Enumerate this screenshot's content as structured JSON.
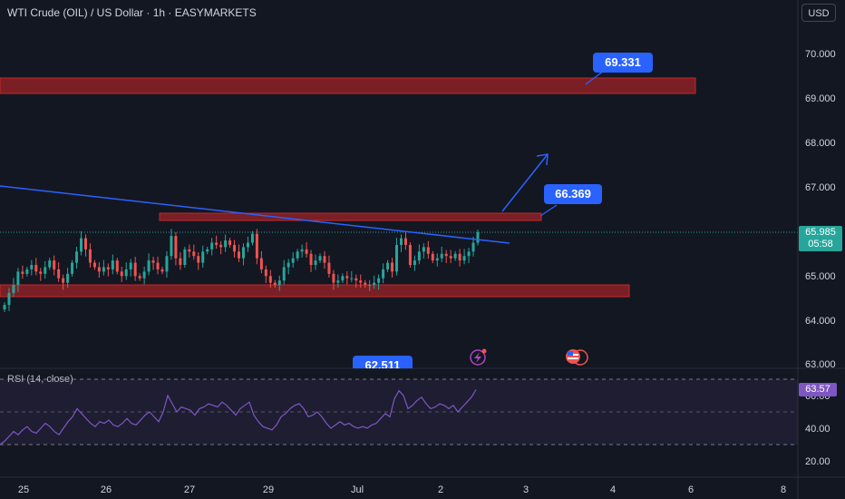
{
  "header": {
    "title": "WTI Crude (OIL) / US Dollar · 1h · EASYMARKETS",
    "currency_button": "USD"
  },
  "price_axis": {
    "labels": [
      "70.000",
      "69.000",
      "68.000",
      "67.000",
      "65.000",
      "64.000",
      "63.000"
    ]
  },
  "last_price": {
    "value": "65.985",
    "countdown": "05:58"
  },
  "time_axis": {
    "labels": [
      "25",
      "26",
      "27",
      "29",
      "Jul",
      "2",
      "3",
      "4",
      "6",
      "8"
    ]
  },
  "annotations": {
    "target_high": "69.331",
    "target_mid": "66.369",
    "support_label": "62.511"
  },
  "rsi": {
    "label": "RSI (14, close)",
    "value": "63.57",
    "axis_labels": [
      "60.00",
      "40.00",
      "20.00"
    ]
  },
  "colors": {
    "background": "#131722",
    "bull": "#26a69a",
    "bear": "#ef5350",
    "zone": "#7a1f25",
    "trendline": "#2962ff",
    "rsi_line": "#7e57c2"
  },
  "chart_data": {
    "type": "candlestick",
    "title": "WTI Crude (OIL) / US Dollar · 1h · EASYMARKETS",
    "ylim": [
      62.9,
      70.4
    ],
    "x_tick_labels": [
      "25",
      "26",
      "27",
      "29",
      "Jul",
      "2",
      "3",
      "4",
      "6",
      "8"
    ],
    "zones": [
      {
        "from": 69.12,
        "to": 69.42
      },
      {
        "from": 66.19,
        "to": 66.27
      },
      {
        "from": 64.63,
        "to": 64.85
      }
    ],
    "trendline": {
      "from": 67.0,
      "to": 65.75
    },
    "arrow_target": 67.8,
    "close_path": [
      64.35,
      64.62,
      64.8,
      65.1,
      65.05,
      65.15,
      65.25,
      65.1,
      65.05,
      65.2,
      65.35,
      65.15,
      64.95,
      64.85,
      65.05,
      65.3,
      65.55,
      65.85,
      65.6,
      65.3,
      65.2,
      65.1,
      65.2,
      65.15,
      65.35,
      65.1,
      65.0,
      65.15,
      65.3,
      65.0,
      64.95,
      65.1,
      65.35,
      65.3,
      65.15,
      65.1,
      65.45,
      65.9,
      65.4,
      65.25,
      65.6,
      65.55,
      65.45,
      65.3,
      65.55,
      65.6,
      65.75,
      65.7,
      65.65,
      65.8,
      65.7,
      65.55,
      65.4,
      65.65,
      65.75,
      65.95,
      65.4,
      65.15,
      65.0,
      64.85,
      64.8,
      64.9,
      65.2,
      65.3,
      65.4,
      65.55,
      65.6,
      65.5,
      65.25,
      65.35,
      65.45,
      65.3,
      65.05,
      64.85,
      64.9,
      65.0,
      64.95,
      64.95,
      64.9,
      64.85,
      64.8,
      64.8,
      64.85,
      64.95,
      65.15,
      65.3,
      65.1,
      65.7,
      65.85,
      65.7,
      65.25,
      65.35,
      65.55,
      65.65,
      65.5,
      65.35,
      65.4,
      65.5,
      65.45,
      65.4,
      65.5,
      65.35,
      65.45,
      65.55,
      65.75,
      65.985
    ],
    "rsi_series": {
      "ylim": [
        13,
        70
      ],
      "levels": [
        70,
        50,
        30
      ],
      "path": [
        30,
        32,
        35,
        38,
        36,
        39,
        41,
        38,
        37,
        40,
        43,
        41,
        38,
        36,
        40,
        44,
        47,
        52,
        49,
        46,
        43,
        41,
        44,
        43,
        45,
        42,
        41,
        43,
        46,
        43,
        42,
        45,
        48,
        50,
        47,
        44,
        50,
        60,
        55,
        50,
        53,
        52,
        51,
        48,
        52,
        53,
        55,
        54,
        53,
        56,
        54,
        51,
        48,
        52,
        54,
        56,
        48,
        44,
        41,
        40,
        39,
        42,
        47,
        49,
        52,
        54,
        55,
        52,
        47,
        48,
        50,
        47,
        43,
        40,
        42,
        44,
        42,
        43,
        41,
        40,
        41,
        40,
        42,
        43,
        46,
        49,
        47,
        58,
        63,
        60,
        52,
        54,
        57,
        59,
        55,
        52,
        53,
        55,
        54,
        52,
        54,
        50,
        53,
        56,
        59,
        63.57
      ]
    }
  }
}
